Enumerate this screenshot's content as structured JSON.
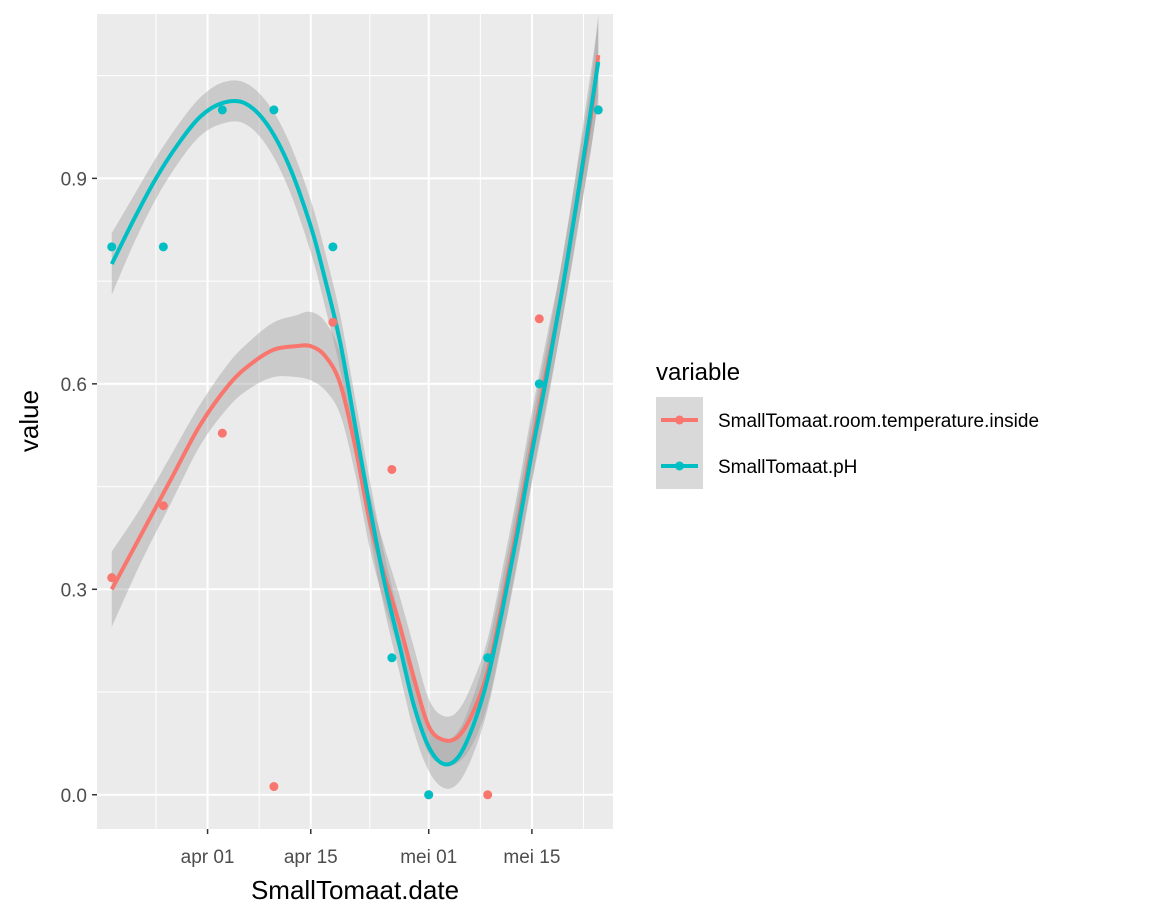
{
  "chart_data": {
    "type": "scatter",
    "title": "",
    "xlabel": "SmallTomaat.date",
    "ylabel": "value",
    "xlim": [
      "2023-03-17",
      "2023-05-26"
    ],
    "ylim": [
      -0.05,
      1.14
    ],
    "x_ticks": [
      {
        "label": "apr 01",
        "date": "2023-04-01"
      },
      {
        "label": "apr 15",
        "date": "2023-04-15"
      },
      {
        "label": "mei 01",
        "date": "2023-05-01"
      },
      {
        "label": "mei 15",
        "date": "2023-05-15"
      }
    ],
    "y_ticks": [
      {
        "label": "0.0",
        "value": 0.0
      },
      {
        "label": "0.3",
        "value": 0.3
      },
      {
        "label": "0.6",
        "value": 0.6
      },
      {
        "label": "0.9",
        "value": 0.9
      }
    ],
    "grid": true,
    "legend": {
      "title": "variable",
      "position": "right"
    },
    "series": [
      {
        "name": "SmallTomaat.room.temperature.inside",
        "color": "#F8766D",
        "points": [
          {
            "x": "2023-03-19",
            "y": 0.317
          },
          {
            "x": "2023-03-26",
            "y": 0.422
          },
          {
            "x": "2023-04-03",
            "y": 0.528
          },
          {
            "x": "2023-04-10",
            "y": 0.012
          },
          {
            "x": "2023-04-18",
            "y": 0.69
          },
          {
            "x": "2023-04-26",
            "y": 0.475
          },
          {
            "x": "2023-05-01",
            "y": 0.0
          },
          {
            "x": "2023-05-09",
            "y": 0.0
          },
          {
            "x": "2023-05-16",
            "y": 0.695
          },
          {
            "x": "2023-05-24",
            "y": 1.0
          }
        ],
        "smooth": [
          {
            "x": "2023-03-19",
            "y": 0.3
          },
          {
            "x": "2023-03-23",
            "y": 0.38
          },
          {
            "x": "2023-03-27",
            "y": 0.46
          },
          {
            "x": "2023-03-31",
            "y": 0.54
          },
          {
            "x": "2023-04-04",
            "y": 0.6
          },
          {
            "x": "2023-04-07",
            "y": 0.63
          },
          {
            "x": "2023-04-10",
            "y": 0.65
          },
          {
            "x": "2023-04-13",
            "y": 0.655
          },
          {
            "x": "2023-04-15",
            "y": 0.655
          },
          {
            "x": "2023-04-17",
            "y": 0.64
          },
          {
            "x": "2023-04-19",
            "y": 0.6
          },
          {
            "x": "2023-04-21",
            "y": 0.51
          },
          {
            "x": "2023-04-23",
            "y": 0.4
          },
          {
            "x": "2023-04-25",
            "y": 0.32
          },
          {
            "x": "2023-04-27",
            "y": 0.25
          },
          {
            "x": "2023-04-29",
            "y": 0.17
          },
          {
            "x": "2023-05-01",
            "y": 0.1
          },
          {
            "x": "2023-05-03",
            "y": 0.08
          },
          {
            "x": "2023-05-05",
            "y": 0.085
          },
          {
            "x": "2023-05-07",
            "y": 0.12
          },
          {
            "x": "2023-05-09",
            "y": 0.18
          },
          {
            "x": "2023-05-11",
            "y": 0.28
          },
          {
            "x": "2023-05-13",
            "y": 0.39
          },
          {
            "x": "2023-05-15",
            "y": 0.51
          },
          {
            "x": "2023-05-17",
            "y": 0.62
          },
          {
            "x": "2023-05-19",
            "y": 0.73
          },
          {
            "x": "2023-05-21",
            "y": 0.86
          },
          {
            "x": "2023-05-23",
            "y": 0.99
          },
          {
            "x": "2023-05-24",
            "y": 1.08
          }
        ],
        "band": [
          0.055,
          0.04,
          0.035,
          0.03,
          0.032,
          0.035,
          0.04,
          0.045,
          0.05,
          0.05,
          0.045,
          0.04,
          0.04,
          0.042,
          0.042,
          0.045,
          0.04,
          0.035,
          0.038,
          0.045,
          0.048,
          0.05,
          0.05,
          0.05,
          0.048,
          0.045,
          0.045,
          0.05,
          0.06
        ]
      },
      {
        "name": "SmallTomaat.pH",
        "color": "#00BFC4",
        "points": [
          {
            "x": "2023-03-19",
            "y": 0.8
          },
          {
            "x": "2023-03-26",
            "y": 0.8
          },
          {
            "x": "2023-04-03",
            "y": 1.0
          },
          {
            "x": "2023-04-10",
            "y": 1.0
          },
          {
            "x": "2023-04-18",
            "y": 0.8
          },
          {
            "x": "2023-04-26",
            "y": 0.2
          },
          {
            "x": "2023-05-01",
            "y": 0.0
          },
          {
            "x": "2023-05-09",
            "y": 0.2
          },
          {
            "x": "2023-05-16",
            "y": 0.6
          },
          {
            "x": "2023-05-24",
            "y": 1.0
          }
        ],
        "smooth": [
          {
            "x": "2023-03-19",
            "y": 0.775
          },
          {
            "x": "2023-03-22",
            "y": 0.84
          },
          {
            "x": "2023-03-25",
            "y": 0.9
          },
          {
            "x": "2023-03-28",
            "y": 0.95
          },
          {
            "x": "2023-03-31",
            "y": 0.99
          },
          {
            "x": "2023-04-03",
            "y": 1.01
          },
          {
            "x": "2023-04-06",
            "y": 1.01
          },
          {
            "x": "2023-04-09",
            "y": 0.98
          },
          {
            "x": "2023-04-12",
            "y": 0.92
          },
          {
            "x": "2023-04-15",
            "y": 0.83
          },
          {
            "x": "2023-04-17",
            "y": 0.75
          },
          {
            "x": "2023-04-19",
            "y": 0.66
          },
          {
            "x": "2023-04-21",
            "y": 0.54
          },
          {
            "x": "2023-04-23",
            "y": 0.42
          },
          {
            "x": "2023-04-25",
            "y": 0.31
          },
          {
            "x": "2023-04-27",
            "y": 0.22
          },
          {
            "x": "2023-04-29",
            "y": 0.13
          },
          {
            "x": "2023-05-01",
            "y": 0.07
          },
          {
            "x": "2023-05-03",
            "y": 0.045
          },
          {
            "x": "2023-05-05",
            "y": 0.055
          },
          {
            "x": "2023-05-07",
            "y": 0.1
          },
          {
            "x": "2023-05-09",
            "y": 0.17
          },
          {
            "x": "2023-05-11",
            "y": 0.27
          },
          {
            "x": "2023-05-13",
            "y": 0.38
          },
          {
            "x": "2023-05-15",
            "y": 0.5
          },
          {
            "x": "2023-05-17",
            "y": 0.61
          },
          {
            "x": "2023-05-19",
            "y": 0.73
          },
          {
            "x": "2023-05-21",
            "y": 0.86
          },
          {
            "x": "2023-05-24",
            "y": 1.07
          }
        ],
        "band": [
          0.045,
          0.035,
          0.03,
          0.028,
          0.028,
          0.03,
          0.03,
          0.032,
          0.035,
          0.038,
          0.04,
          0.04,
          0.04,
          0.04,
          0.04,
          0.04,
          0.038,
          0.035,
          0.035,
          0.038,
          0.042,
          0.045,
          0.045,
          0.045,
          0.045,
          0.045,
          0.045,
          0.05,
          0.06
        ]
      }
    ]
  }
}
